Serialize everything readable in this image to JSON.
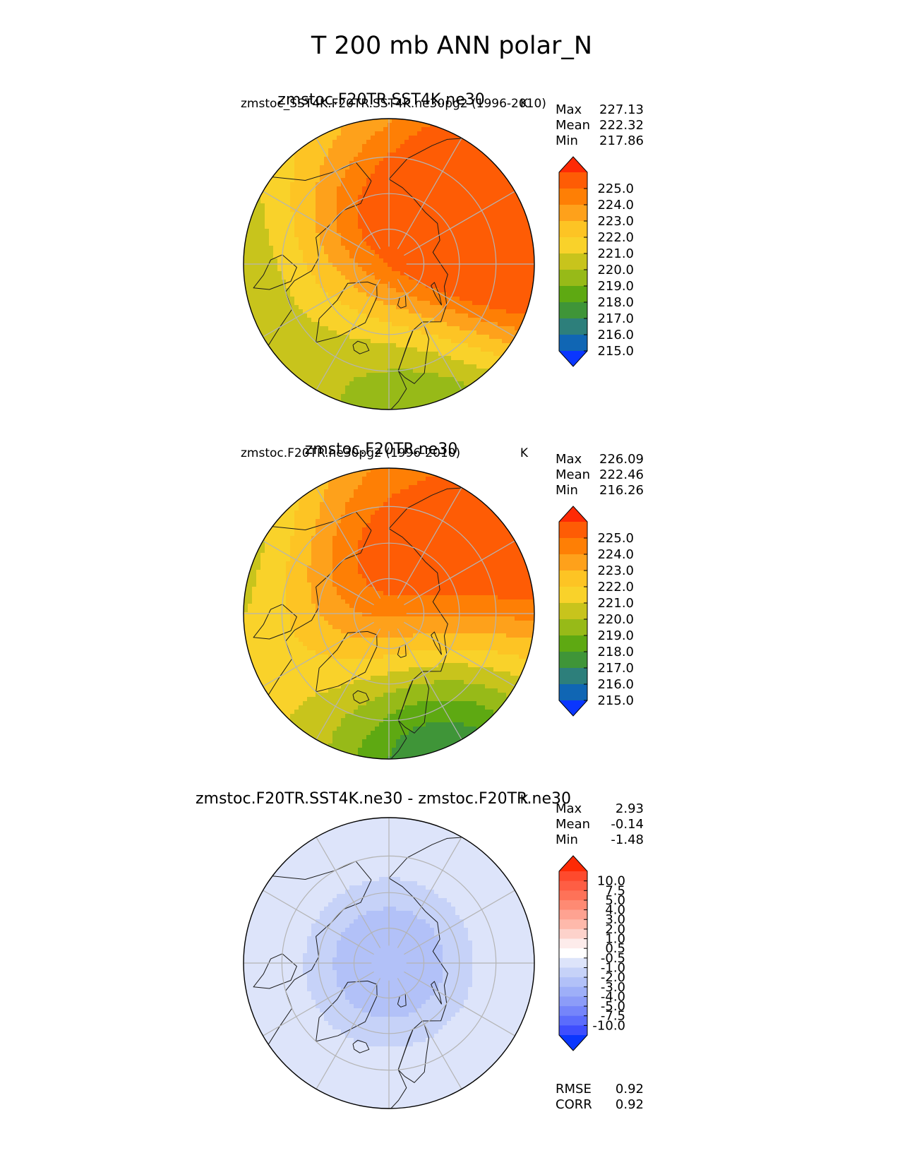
{
  "figure_title": "T 200 mb ANN polar_N",
  "chart_data": [
    {
      "type": "heatmap",
      "projection": "north polar stereographic",
      "title": "zmstoc.F20TR.SST4K.ne30",
      "subtitle_left": "zmstoc_SST4K.F20TR.SST4K.ne30pg2 (1996-2010)",
      "subtitle_right": "K",
      "stats": [
        {
          "label": "Max",
          "value": "227.13"
        },
        {
          "label": "Mean",
          "value": "222.32"
        },
        {
          "label": "Min",
          "value": "217.86"
        }
      ],
      "colorbar": {
        "ticks": [
          "225.0",
          "224.0",
          "223.0",
          "222.0",
          "221.0",
          "220.0",
          "219.0",
          "218.0",
          "217.0",
          "216.0",
          "215.0"
        ],
        "colors": [
          "#fe2a05",
          "#fe5c05",
          "#fe7f05",
          "#fea11b",
          "#fdc424",
          "#f9d22a",
          "#c8c41c",
          "#97ba18",
          "#5ea912",
          "#3f9538",
          "#2d7f7b",
          "#1066b4",
          "#0a36fe"
        ]
      },
      "field": {
        "base": 222.3,
        "features": [
          {
            "lon": 110,
            "lat": 45,
            "amp": 5.0,
            "spread": 30
          },
          {
            "lon": 105,
            "lat": 65,
            "amp": 2.5,
            "spread": 25
          },
          {
            "lon": 215,
            "lat": 75,
            "amp": 2.5,
            "spread": 20
          },
          {
            "lon": 20,
            "lat": 45,
            "amp": -3.8,
            "spread": 28
          },
          {
            "lon": -80,
            "lat": 50,
            "amp": -1.5,
            "spread": 32
          },
          {
            "lon": -115,
            "lat": 45,
            "amp": -1.2,
            "spread": 30
          }
        ]
      }
    },
    {
      "type": "heatmap",
      "projection": "north polar stereographic",
      "title": "zmstoc.F20TR.ne30",
      "subtitle_left": "zmstoc.F20TR.ne30pg2 (1996-2010)",
      "subtitle_right": "K",
      "stats": [
        {
          "label": "Max",
          "value": "226.09"
        },
        {
          "label": "Mean",
          "value": "222.46"
        },
        {
          "label": "Min",
          "value": "216.26"
        }
      ],
      "colorbar": {
        "ticks": [
          "225.0",
          "224.0",
          "223.0",
          "222.0",
          "221.0",
          "220.0",
          "219.0",
          "218.0",
          "217.0",
          "216.0",
          "215.0"
        ],
        "colors": [
          "#fe2a05",
          "#fe5c05",
          "#fe7f05",
          "#fea11b",
          "#fdc424",
          "#f9d22a",
          "#c8c41c",
          "#97ba18",
          "#5ea912",
          "#3f9538",
          "#2d7f7b",
          "#1066b4",
          "#0a36fe"
        ]
      },
      "field": {
        "base": 222.7,
        "features": [
          {
            "lon": 215,
            "lat": 75,
            "amp": 2.6,
            "spread": 22
          },
          {
            "lon": 150,
            "lat": 65,
            "amp": 1.8,
            "spread": 30
          },
          {
            "lon": 115,
            "lat": 45,
            "amp": 2.8,
            "spread": 20
          },
          {
            "lon": 20,
            "lat": 45,
            "amp": -5.8,
            "spread": 28
          },
          {
            "lon": -80,
            "lat": 48,
            "amp": -1.2,
            "spread": 30
          },
          {
            "lon": -125,
            "lat": 45,
            "amp": -2.5,
            "spread": 25
          }
        ]
      }
    },
    {
      "type": "heatmap",
      "projection": "north polar stereographic",
      "title": "zmstoc.F20TR.SST4K.ne30 - zmstoc.F20TR.ne30",
      "subtitle_left": "",
      "subtitle_right": "K",
      "stats": [
        {
          "label": "Max",
          "value": "2.93"
        },
        {
          "label": "Mean",
          "value": "-0.14"
        },
        {
          "label": "Min",
          "value": "-1.48"
        }
      ],
      "colorbar": {
        "ticks": [
          "10.0",
          "7.5",
          "5.0",
          "4.0",
          "3.0",
          "2.0",
          "1.0",
          "0.5",
          "-0.5",
          "-1.0",
          "-2.0",
          "-3.0",
          "-4.0",
          "-5.0",
          "-7.5",
          "-10.0"
        ],
        "colors": [
          "#fe2a05",
          "#fe4a2d",
          "#fe5e44",
          "#fe7258",
          "#fe8a73",
          "#fea291",
          "#feb9ab",
          "#fdd2cb",
          "#fdeceb",
          "#ffffff",
          "#dde4fa",
          "#c6d2f8",
          "#b2c1f8",
          "#9eaff8",
          "#8c9cf8",
          "#7585fa",
          "#5b6cfc",
          "#3e4efe",
          "#0a36fe"
        ]
      },
      "field": {
        "base": 0.6,
        "features": [
          {
            "lon": 0,
            "lat": 90,
            "amp": -2.1,
            "spread": 23
          }
        ]
      },
      "footer_stats": [
        {
          "label": "RMSE",
          "value": "0.92"
        },
        {
          "label": "CORR",
          "value": "0.92"
        }
      ]
    }
  ]
}
